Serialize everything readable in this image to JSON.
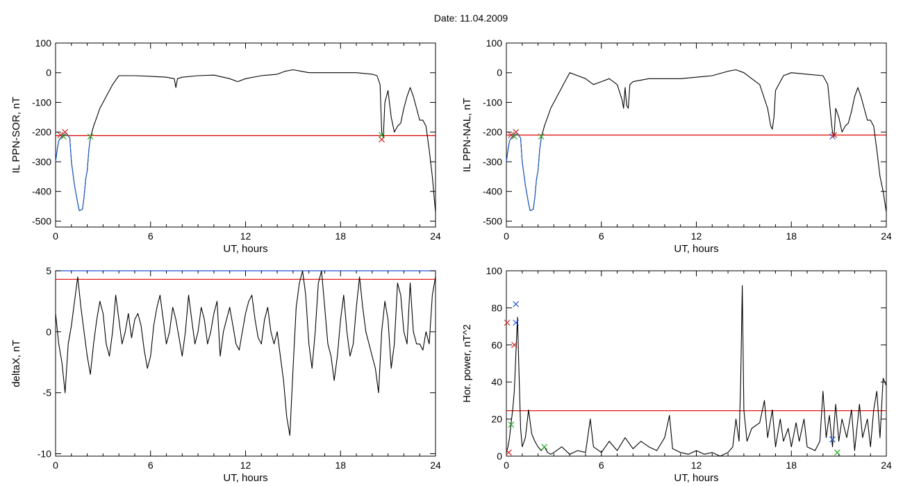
{
  "header": {
    "date_label": "Date:  11.04.2009"
  },
  "colors": {
    "trace": "#000000",
    "threshold": "#dd0000",
    "event": "#1f5fd0",
    "marker_red": "#cc2222",
    "marker_green": "#22aa22",
    "marker_blue": "#2255dd"
  },
  "chart_data": [
    {
      "type": "line",
      "xlabel": "UT, hours",
      "ylabel": "IL PPN-SOR, nT",
      "xlim": [
        0,
        24
      ],
      "ylim": [
        -520,
        100
      ],
      "xticks": [
        0,
        6,
        12,
        18,
        24
      ],
      "yticks": [
        100,
        0,
        -100,
        -200,
        -300,
        -400,
        -500
      ],
      "threshold": -212,
      "series": [
        {
          "x": [
            0,
            0.1,
            0.2,
            0.3,
            0.5,
            0.7,
            0.9,
            1.0,
            1.2,
            1.4,
            1.5,
            1.7,
            1.8,
            1.9,
            2.0,
            2.1,
            2.2,
            2.4,
            2.6,
            2.8,
            3.0,
            3.2,
            3.4,
            3.6,
            3.8,
            4.0,
            5.0,
            6.0,
            7.0,
            7.5,
            7.6,
            7.7,
            8.0,
            9.0,
            10.0,
            11.0,
            11.5,
            12.0,
            13.0,
            14.0,
            14.5,
            15.0,
            15.5,
            16.0,
            17.0,
            18.0,
            19.0,
            20.0,
            20.3,
            20.5,
            20.6,
            20.7,
            20.8,
            21.0,
            21.2,
            21.4,
            21.6,
            21.8,
            22.0,
            22.2,
            22.4,
            22.6,
            22.8,
            23.0,
            23.2,
            23.4,
            23.6,
            23.8,
            24.0
          ],
          "y": [
            -300,
            -260,
            -230,
            -220,
            -210,
            -205,
            -220,
            -300,
            -380,
            -440,
            -465,
            -460,
            -420,
            -360,
            -330,
            -260,
            -220,
            -180,
            -150,
            -120,
            -100,
            -80,
            -60,
            -40,
            -25,
            -10,
            -10,
            -12,
            -15,
            -20,
            -50,
            -20,
            -15,
            -10,
            -8,
            -20,
            -30,
            -20,
            -10,
            -5,
            5,
            10,
            5,
            0,
            0,
            0,
            0,
            -5,
            -10,
            -40,
            -200,
            -220,
            -100,
            -60,
            -150,
            -200,
            -180,
            -170,
            -120,
            -80,
            -50,
            -80,
            -120,
            -160,
            -160,
            -180,
            -260,
            -350,
            -470
          ]
        },
        {
          "x": [
            0,
            0.1,
            0.2,
            0.3,
            0.5,
            0.7,
            0.9,
            1.0,
            1.2,
            1.4,
            1.5,
            1.7,
            1.8,
            1.9,
            2.0,
            2.1,
            2.2
          ],
          "y": [
            -300,
            -260,
            -230,
            -220,
            -210,
            -205,
            -220,
            -300,
            -380,
            -440,
            -465,
            -460,
            -420,
            -360,
            -330,
            -260,
            -220
          ]
        }
      ],
      "markers": [
        {
          "x": 0.3,
          "y": -210,
          "color": "red"
        },
        {
          "x": 0.6,
          "y": -200,
          "color": "red"
        },
        {
          "x": 0.5,
          "y": -215,
          "color": "green"
        },
        {
          "x": 2.2,
          "y": -215,
          "color": "green"
        },
        {
          "x": 20.6,
          "y": -225,
          "color": "red"
        },
        {
          "x": 20.6,
          "y": -210,
          "color": "green"
        }
      ]
    },
    {
      "type": "line",
      "xlabel": "UT, hours",
      "ylabel": "IL PPN-NAL, nT",
      "xlim": [
        0,
        24
      ],
      "ylim": [
        -520,
        100
      ],
      "xticks": [
        0,
        6,
        12,
        18,
        24
      ],
      "yticks": [
        100,
        0,
        -100,
        -200,
        -300,
        -400,
        -500
      ],
      "threshold": -210,
      "series": [
        {
          "x": [
            0,
            0.1,
            0.2,
            0.3,
            0.5,
            0.7,
            0.9,
            1.0,
            1.2,
            1.4,
            1.5,
            1.7,
            1.8,
            1.9,
            2.0,
            2.1,
            2.2,
            2.4,
            2.6,
            2.8,
            3.0,
            3.2,
            3.4,
            3.6,
            3.8,
            4.0,
            4.5,
            5.0,
            5.5,
            6.0,
            6.5,
            7.0,
            7.3,
            7.4,
            7.5,
            7.6,
            7.7,
            7.8,
            8.0,
            9.0,
            10.0,
            11.0,
            12.0,
            13.0,
            14.0,
            14.5,
            15.0,
            15.5,
            16.0,
            16.5,
            16.7,
            16.8,
            16.9,
            17.0,
            17.5,
            18.0,
            19.0,
            20.0,
            20.3,
            20.5,
            20.6,
            20.7,
            20.8,
            21.0,
            21.2,
            21.4,
            21.6,
            21.8,
            22.0,
            22.2,
            22.4,
            22.6,
            22.8,
            23.0,
            23.2,
            23.4,
            23.6,
            23.8,
            24.0
          ],
          "y": [
            -300,
            -260,
            -230,
            -220,
            -210,
            -205,
            -220,
            -300,
            -380,
            -440,
            -465,
            -460,
            -420,
            -360,
            -330,
            -260,
            -220,
            -180,
            -150,
            -120,
            -100,
            -80,
            -60,
            -40,
            -20,
            0,
            -10,
            -20,
            -40,
            -30,
            -20,
            -40,
            -90,
            -120,
            -50,
            -110,
            -120,
            -40,
            -30,
            -20,
            -20,
            -20,
            -15,
            -10,
            5,
            10,
            0,
            -20,
            -40,
            -120,
            -180,
            -190,
            -150,
            -60,
            -10,
            0,
            -5,
            -10,
            -40,
            -150,
            -200,
            -215,
            -120,
            -150,
            -200,
            -180,
            -170,
            -130,
            -80,
            -50,
            -80,
            -120,
            -160,
            -160,
            -180,
            -260,
            -350,
            -400,
            -470
          ]
        },
        {
          "x": [
            0,
            0.1,
            0.2,
            0.3,
            0.5,
            0.7,
            0.9,
            1.0,
            1.2,
            1.4,
            1.5,
            1.7,
            1.8,
            1.9,
            2.0,
            2.1,
            2.2
          ],
          "y": [
            -300,
            -260,
            -230,
            -220,
            -210,
            -205,
            -220,
            -300,
            -380,
            -440,
            -465,
            -460,
            -420,
            -360,
            -330,
            -260,
            -220
          ]
        }
      ],
      "markers": [
        {
          "x": 0.3,
          "y": -210,
          "color": "red"
        },
        {
          "x": 0.6,
          "y": -200,
          "color": "red"
        },
        {
          "x": 0.5,
          "y": -215,
          "color": "green"
        },
        {
          "x": 2.2,
          "y": -215,
          "color": "green"
        },
        {
          "x": 20.6,
          "y": -215,
          "color": "blue"
        },
        {
          "x": 20.7,
          "y": -210,
          "color": "red"
        }
      ]
    },
    {
      "type": "line",
      "xlabel": "UT, hours",
      "ylabel": "deltaX, nT",
      "xlim": [
        0,
        24
      ],
      "ylim": [
        -10.2,
        5
      ],
      "xticks": [
        0,
        6,
        12,
        18,
        24
      ],
      "yticks": [
        5,
        0,
        -5,
        -10
      ],
      "threshold": 4.3,
      "top_line_color": "blue",
      "series": [
        {
          "x": [
            0,
            0.2,
            0.4,
            0.6,
            0.8,
            1.0,
            1.2,
            1.4,
            1.6,
            1.8,
            2.0,
            2.2,
            2.4,
            2.6,
            2.8,
            3.0,
            3.2,
            3.4,
            3.6,
            3.8,
            4.0,
            4.2,
            4.4,
            4.6,
            4.8,
            5.0,
            5.2,
            5.4,
            5.6,
            5.8,
            6.0,
            6.2,
            6.4,
            6.6,
            6.8,
            7.0,
            7.2,
            7.4,
            7.6,
            7.8,
            8.0,
            8.2,
            8.4,
            8.6,
            8.8,
            9.0,
            9.2,
            9.4,
            9.6,
            9.8,
            10.0,
            10.2,
            10.4,
            10.6,
            10.8,
            11.0,
            11.2,
            11.4,
            11.6,
            11.8,
            12.0,
            12.2,
            12.4,
            12.6,
            12.8,
            13.0,
            13.2,
            13.4,
            13.6,
            13.8,
            14.0,
            14.2,
            14.4,
            14.6,
            14.8,
            15.0,
            15.2,
            15.4,
            15.6,
            15.8,
            16.0,
            16.2,
            16.4,
            16.6,
            16.8,
            17.0,
            17.2,
            17.4,
            17.6,
            17.8,
            18.0,
            18.2,
            18.4,
            18.6,
            18.8,
            19.0,
            19.2,
            19.4,
            19.6,
            19.8,
            20.0,
            20.2,
            20.4,
            20.6,
            20.8,
            21.0,
            21.2,
            21.4,
            21.6,
            21.8,
            22.0,
            22.2,
            22.4,
            22.6,
            22.8,
            23.0,
            23.2,
            23.4,
            23.6,
            23.8,
            24.0
          ],
          "y": [
            1.5,
            -1,
            -2.5,
            -5,
            -1,
            0.5,
            2.5,
            4.5,
            2,
            0,
            -2,
            -3.5,
            -1,
            1,
            2.5,
            1.5,
            -1,
            -2,
            0,
            3,
            1,
            -1,
            0,
            1.5,
            -0.5,
            1,
            1.5,
            0.5,
            -1.5,
            -3,
            -2,
            0.5,
            2,
            3,
            1,
            -1,
            0,
            2,
            1,
            -0.5,
            -2,
            0,
            3,
            1,
            -1,
            0,
            2,
            1,
            -1,
            0,
            1.5,
            2.5,
            -2,
            0,
            1,
            2,
            0.5,
            -1,
            -1.5,
            0,
            1.5,
            2.5,
            3,
            1,
            -0.5,
            -1,
            1,
            2,
            0,
            -1,
            0,
            -2,
            -4,
            -7,
            -8.5,
            -3,
            2,
            4,
            5,
            3,
            -1,
            -3,
            0,
            4,
            5,
            2,
            -1,
            -2,
            -4,
            -2,
            1,
            3,
            0,
            -2,
            -1,
            2,
            4.5,
            2,
            0,
            -1,
            -2,
            -3,
            -5,
            0,
            2.5,
            1,
            -3,
            -1,
            4,
            3,
            0,
            -1,
            4,
            0,
            -1,
            -1,
            -1.5,
            0,
            -1,
            3,
            4.5
          ]
        }
      ],
      "markers": []
    },
    {
      "type": "line",
      "xlabel": "UT, hours",
      "ylabel": "Hor. power, nT^2",
      "xlim": [
        0,
        24
      ],
      "ylim": [
        0,
        100
      ],
      "xticks": [
        0,
        6,
        12,
        18,
        24
      ],
      "yticks": [
        0,
        20,
        40,
        60,
        80,
        100
      ],
      "threshold": 24.5,
      "series": [
        {
          "x": [
            0,
            0.1,
            0.2,
            0.3,
            0.4,
            0.5,
            0.6,
            0.7,
            0.8,
            0.9,
            1.0,
            1.2,
            1.4,
            1.6,
            1.8,
            2.0,
            2.2,
            2.4,
            2.6,
            2.8,
            3.0,
            3.5,
            4.0,
            4.5,
            5.0,
            5.3,
            5.5,
            6.0,
            6.5,
            7.0,
            7.5,
            8.0,
            8.5,
            9.0,
            9.5,
            10.0,
            10.3,
            10.5,
            11.0,
            11.5,
            12.0,
            12.5,
            13.0,
            13.5,
            14.0,
            14.3,
            14.5,
            14.7,
            14.8,
            14.9,
            15.0,
            15.2,
            15.5,
            16.0,
            16.3,
            16.5,
            16.8,
            17.0,
            17.3,
            17.5,
            17.8,
            18.0,
            18.3,
            18.5,
            18.8,
            19.0,
            19.5,
            19.8,
            20.0,
            20.2,
            20.4,
            20.6,
            20.8,
            21.0,
            21.2,
            21.5,
            21.8,
            22.0,
            22.3,
            22.5,
            22.8,
            23.0,
            23.2,
            23.4,
            23.6,
            23.8,
            24.0
          ],
          "y": [
            2,
            5,
            10,
            18,
            25,
            35,
            55,
            75,
            45,
            15,
            5,
            10,
            25,
            12,
            8,
            5,
            3,
            5,
            2,
            1,
            2,
            5,
            1,
            3,
            2,
            20,
            5,
            2,
            8,
            3,
            10,
            4,
            8,
            5,
            3,
            10,
            22,
            4,
            2,
            1,
            3,
            1,
            2,
            0,
            2,
            5,
            20,
            8,
            40,
            92,
            25,
            8,
            15,
            18,
            30,
            10,
            25,
            5,
            20,
            8,
            15,
            5,
            18,
            8,
            20,
            5,
            3,
            8,
            35,
            10,
            22,
            5,
            28,
            8,
            20,
            10,
            25,
            3,
            28,
            10,
            20,
            5,
            25,
            35,
            10,
            42,
            38
          ]
        }
      ],
      "markers": [
        {
          "x": 0.05,
          "y": 72,
          "color": "red"
        },
        {
          "x": 0.15,
          "y": 2,
          "color": "red"
        },
        {
          "x": 0.3,
          "y": 17,
          "color": "green"
        },
        {
          "x": 0.5,
          "y": 60,
          "color": "red"
        },
        {
          "x": 0.6,
          "y": 82,
          "color": "blue"
        },
        {
          "x": 0.6,
          "y": 72,
          "color": "blue"
        },
        {
          "x": 2.4,
          "y": 5,
          "color": "green"
        },
        {
          "x": 20.6,
          "y": 9,
          "color": "blue"
        },
        {
          "x": 20.9,
          "y": 2,
          "color": "green"
        }
      ]
    }
  ]
}
